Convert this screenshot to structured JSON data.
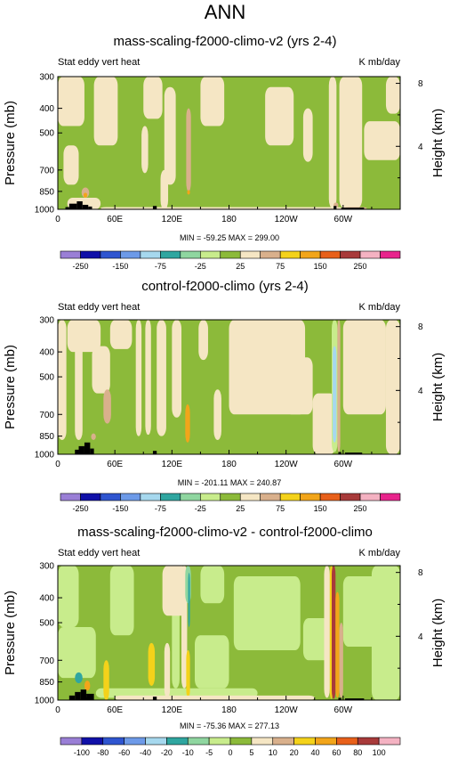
{
  "figure_title": "ANN",
  "colors": {
    "land": "#000000",
    "frame": "#000000",
    "palette": [
      "#9a7fd6",
      "#1010a8",
      "#2f55d0",
      "#6d9ae8",
      "#a6d8ee",
      "#2fa6a0",
      "#8fd6a0",
      "#c8ec8c",
      "#8cba3a",
      "#f5e6c4",
      "#d9b08c",
      "#f4d21a",
      "#f2a51a",
      "#e8601a",
      "#a83a3a",
      "#f4b2c2",
      "#e8248c"
    ]
  },
  "panels": [
    {
      "title": "mass-scaling-f2000-climo-v2 (yrs 2-4)",
      "left_label": "Stat eddy vert heat",
      "right_label": "K mb/day",
      "ylabel": "Pressure (mb)",
      "y2label": "Height (km)",
      "ytick_labels": [
        "300",
        "400",
        "500",
        "700",
        "850",
        "1000"
      ],
      "y2tick_labels": [
        "8",
        "4"
      ],
      "xtick_labels": [
        "0",
        "60E",
        "120E",
        "180",
        "120W",
        "60W"
      ],
      "stats": "MIN = -59.25  MAX = 299.00",
      "colorbar_labels": [
        "-250",
        "-150",
        "-75",
        "-25",
        "25",
        "75",
        "150",
        "250"
      ]
    },
    {
      "title": "control-f2000-climo (yrs 2-4)",
      "left_label": "Stat eddy vert heat",
      "right_label": "K mb/day",
      "ylabel": "Pressure (mb)",
      "y2label": "Height (km)",
      "ytick_labels": [
        "300",
        "400",
        "500",
        "700",
        "850",
        "1000"
      ],
      "y2tick_labels": [
        "8",
        "4"
      ],
      "xtick_labels": [
        "0",
        "60E",
        "120E",
        "180",
        "120W",
        "60W"
      ],
      "stats": "MIN = -201.11  MAX = 240.87",
      "colorbar_labels": [
        "-250",
        "-150",
        "-75",
        "-25",
        "25",
        "75",
        "150",
        "250"
      ]
    },
    {
      "title": "mass-scaling-f2000-climo-v2 - control-f2000-climo",
      "left_label": "Stat eddy vert heat",
      "right_label": "K mb/day",
      "ylabel": "Pressure (mb)",
      "y2label": "Height (km)",
      "ytick_labels": [
        "300",
        "400",
        "500",
        "700",
        "850",
        "1000"
      ],
      "y2tick_labels": [
        "8",
        "4"
      ],
      "xtick_labels": [
        "0",
        "60E",
        "120E",
        "180",
        "120W",
        "60W"
      ],
      "stats": "MIN = -75.36  MAX = 277.13",
      "colorbar_labels": [
        "-100",
        "-80",
        "-60",
        "-40",
        "-20",
        "-10",
        "-5",
        "0",
        "5",
        "10",
        "20",
        "40",
        "60",
        "80",
        "100"
      ]
    }
  ],
  "chart_data": [
    {
      "type": "heatmap",
      "title": "mass-scaling-f2000-climo-v2 (yrs 2-4)",
      "xlabel": "",
      "ylabel": "Pressure (mb)",
      "y2label": "Height (km)",
      "xlim": [
        0,
        360
      ],
      "ylim": [
        1000,
        300
      ],
      "y_scale": "log",
      "units": "K mb/day",
      "levels": [
        -250,
        -200,
        -150,
        -100,
        -75,
        -50,
        -25,
        -10,
        10,
        25,
        50,
        75,
        100,
        150,
        200,
        250
      ],
      "min": -59.25,
      "max": 299.0,
      "background_value": 0,
      "features": [
        {
          "lon": [
            0,
            28
          ],
          "p": [
            300,
            470
          ],
          "v": 12
        },
        {
          "lon": [
            6,
            22
          ],
          "p": [
            560,
            800
          ],
          "v": 12
        },
        {
          "lon": [
            38,
            63
          ],
          "p": [
            300,
            560
          ],
          "v": 12
        },
        {
          "lon": [
            90,
            110
          ],
          "p": [
            300,
            440
          ],
          "v": 12
        },
        {
          "lon": [
            112,
            124
          ],
          "p": [
            330,
            800
          ],
          "v": 12
        },
        {
          "lon": [
            150,
            175
          ],
          "p": [
            300,
            470
          ],
          "v": 12
        },
        {
          "lon": [
            218,
            248
          ],
          "p": [
            330,
            560
          ],
          "v": 12
        },
        {
          "lon": [
            258,
            268
          ],
          "p": [
            400,
            650
          ],
          "v": 12
        },
        {
          "lon": [
            285,
            293
          ],
          "p": [
            300,
            990
          ],
          "v": 12
        },
        {
          "lon": [
            296,
            320
          ],
          "p": [
            300,
            990
          ],
          "v": 12
        },
        {
          "lon": [
            322,
            360
          ],
          "p": [
            450,
            640
          ],
          "v": 12
        },
        {
          "lon": [
            345,
            360
          ],
          "p": [
            300,
            420
          ],
          "v": 12
        },
        {
          "lon": [
            88,
            95
          ],
          "p": [
            470,
            720
          ],
          "v": 12
        },
        {
          "lon": [
            108,
            116
          ],
          "p": [
            700,
            1000
          ],
          "v": 12
        },
        {
          "lon": [
            135,
            140
          ],
          "p": [
            400,
            850
          ],
          "v": 30
        },
        {
          "lon": [
            136,
            139
          ],
          "p": [
            840,
            875
          ],
          "v": 80
        },
        {
          "lon": [
            25,
            33
          ],
          "p": [
            820,
            900
          ],
          "v": 30
        },
        {
          "lon": [
            27,
            31
          ],
          "p": [
            860,
            900
          ],
          "v": 80
        },
        {
          "lon": [
            290,
            295
          ],
          "p": [
            940,
            990
          ],
          "v": 30
        },
        {
          "lon": [
            45,
            300
          ],
          "p": [
            980,
            1000
          ],
          "v": 12
        },
        {
          "lon": [
            10,
            45
          ],
          "p": [
            900,
            1000
          ],
          "v": 12
        },
        {
          "lon": [
            300,
            325
          ],
          "p": [
            980,
            1000
          ],
          "v": 30
        }
      ],
      "land": [
        [
          8,
          12,
          980
        ],
        [
          12,
          20,
          950
        ],
        [
          20,
          26,
          930
        ],
        [
          26,
          32,
          960
        ],
        [
          32,
          36,
          975
        ],
        [
          100,
          104,
          970
        ],
        [
          290,
          293,
          970
        ],
        [
          298,
          322,
          985
        ]
      ]
    },
    {
      "type": "heatmap",
      "title": "control-f2000-climo (yrs 2-4)",
      "xlabel": "",
      "ylabel": "Pressure (mb)",
      "y2label": "Height (km)",
      "xlim": [
        0,
        360
      ],
      "ylim": [
        1000,
        300
      ],
      "y_scale": "log",
      "units": "K mb/day",
      "levels": [
        -250,
        -200,
        -150,
        -100,
        -75,
        -50,
        -25,
        -10,
        10,
        25,
        50,
        75,
        100,
        150,
        200,
        250
      ],
      "min": -201.11,
      "max": 240.87,
      "background_value": 0,
      "features": [
        {
          "lon": [
            0,
            9
          ],
          "p": [
            300,
            880
          ],
          "v": 12
        },
        {
          "lon": [
            18,
            26
          ],
          "p": [
            300,
            880
          ],
          "v": 12
        },
        {
          "lon": [
            10,
            45
          ],
          "p": [
            300,
            400
          ],
          "v": 12
        },
        {
          "lon": [
            36,
            55
          ],
          "p": [
            380,
            580
          ],
          "v": 12
        },
        {
          "lon": [
            55,
            78
          ],
          "p": [
            300,
            390
          ],
          "v": 12
        },
        {
          "lon": [
            82,
            88
          ],
          "p": [
            300,
            850
          ],
          "v": 12
        },
        {
          "lon": [
            92,
            98
          ],
          "p": [
            300,
            840
          ],
          "v": 12
        },
        {
          "lon": [
            104,
            114
          ],
          "p": [
            300,
            850
          ],
          "v": 12
        },
        {
          "lon": [
            120,
            130
          ],
          "p": [
            300,
            720
          ],
          "v": 12
        },
        {
          "lon": [
            148,
            158
          ],
          "p": [
            300,
            430
          ],
          "v": 12
        },
        {
          "lon": [
            164,
            172
          ],
          "p": [
            560,
            880
          ],
          "v": 12
        },
        {
          "lon": [
            180,
            260
          ],
          "p": [
            300,
            700
          ],
          "v": 12
        },
        {
          "lon": [
            240,
            268
          ],
          "p": [
            420,
            700
          ],
          "v": 12
        },
        {
          "lon": [
            268,
            292
          ],
          "p": [
            580,
            1000
          ],
          "v": 12
        },
        {
          "lon": [
            300,
            345
          ],
          "p": [
            300,
            700
          ],
          "v": 12
        },
        {
          "lon": [
            345,
            360
          ],
          "p": [
            300,
            1000
          ],
          "v": 12
        },
        {
          "lon": [
            48,
            56
          ],
          "p": [
            560,
            760
          ],
          "v": 30
        },
        {
          "lon": [
            134,
            139
          ],
          "p": [
            640,
            900
          ],
          "v": 80
        },
        {
          "lon": [
            288,
            294
          ],
          "p": [
            300,
            980
          ],
          "v": -15
        },
        {
          "lon": [
            289,
            293
          ],
          "p": [
            380,
            900
          ],
          "v": -85
        },
        {
          "lon": [
            294,
            297
          ],
          "p": [
            300,
            980
          ],
          "v": 30
        },
        {
          "lon": [
            35,
            40
          ],
          "p": [
            830,
            880
          ],
          "v": 30
        }
      ],
      "land": [
        [
          18,
          22,
          960
        ],
        [
          22,
          28,
          930
        ],
        [
          28,
          34,
          900
        ],
        [
          34,
          38,
          950
        ],
        [
          100,
          104,
          970
        ],
        [
          295,
          298,
          980
        ],
        [
          302,
          320,
          985
        ]
      ]
    },
    {
      "type": "heatmap",
      "title": "mass-scaling-f2000-climo-v2 - control-f2000-climo",
      "xlabel": "",
      "ylabel": "Pressure (mb)",
      "y2label": "Height (km)",
      "xlim": [
        0,
        360
      ],
      "ylim": [
        1000,
        300
      ],
      "y_scale": "log",
      "units": "K mb/day",
      "levels": [
        -100,
        -80,
        -60,
        -40,
        -20,
        -10,
        -5,
        0,
        5,
        10,
        20,
        40,
        60,
        80,
        100
      ],
      "min": -75.36,
      "max": 277.13,
      "background_value": 2,
      "features": [
        {
          "lon": [
            0,
            22
          ],
          "p": [
            300,
            520
          ],
          "v": -2
        },
        {
          "lon": [
            0,
            40
          ],
          "p": [
            520,
            820
          ],
          "v": -2
        },
        {
          "lon": [
            55,
            80
          ],
          "p": [
            300,
            560
          ],
          "v": -2
        },
        {
          "lon": [
            120,
            128
          ],
          "p": [
            300,
            900
          ],
          "v": -2
        },
        {
          "lon": [
            144,
            180
          ],
          "p": [
            560,
            900
          ],
          "v": -2
        },
        {
          "lon": [
            150,
            175
          ],
          "p": [
            300,
            420
          ],
          "v": -2
        },
        {
          "lon": [
            185,
            255
          ],
          "p": [
            330,
            640
          ],
          "v": -2
        },
        {
          "lon": [
            258,
            285
          ],
          "p": [
            480,
            700
          ],
          "v": -2
        },
        {
          "lon": [
            300,
            360
          ],
          "p": [
            330,
            620
          ],
          "v": -2
        },
        {
          "lon": [
            330,
            360
          ],
          "p": [
            300,
            1000
          ],
          "v": -2
        },
        {
          "lon": [
            40,
            210
          ],
          "p": [
            900,
            980
          ],
          "v": -2
        },
        {
          "lon": [
            110,
            135
          ],
          "p": [
            300,
            470
          ],
          "v": 7
        },
        {
          "lon": [
            112,
            118
          ],
          "p": [
            600,
            980
          ],
          "v": 7
        },
        {
          "lon": [
            130,
            136
          ],
          "p": [
            300,
            900
          ],
          "v": 7
        },
        {
          "lon": [
            134,
            140
          ],
          "p": [
            300,
            420
          ],
          "v": -7
        },
        {
          "lon": [
            137,
            139
          ],
          "p": [
            320,
            520
          ],
          "v": -15
        },
        {
          "lon": [
            135,
            139
          ],
          "p": [
            640,
            980
          ],
          "v": 25
        },
        {
          "lon": [
            95,
            102
          ],
          "p": [
            600,
            880
          ],
          "v": 25
        },
        {
          "lon": [
            48,
            54
          ],
          "p": [
            700,
            1000
          ],
          "v": 25
        },
        {
          "lon": [
            18,
            26
          ],
          "p": [
            780,
            860
          ],
          "v": -15
        },
        {
          "lon": [
            28,
            34
          ],
          "p": [
            840,
            920
          ],
          "v": 50
        },
        {
          "lon": [
            280,
            286
          ],
          "p": [
            300,
            980
          ],
          "v": 7
        },
        {
          "lon": [
            286,
            289
          ],
          "p": [
            300,
            990
          ],
          "v": 25
        },
        {
          "lon": [
            288,
            292
          ],
          "p": [
            300,
            990
          ],
          "v": 90
        },
        {
          "lon": [
            292,
            296
          ],
          "p": [
            380,
            980
          ],
          "v": 50
        },
        {
          "lon": [
            296,
            300
          ],
          "p": [
            500,
            980
          ],
          "v": 15
        },
        {
          "lon": [
            60,
            270
          ],
          "p": [
            960,
            1000
          ],
          "v": 7
        }
      ],
      "land": [
        [
          12,
          18,
          960
        ],
        [
          18,
          24,
          930
        ],
        [
          24,
          30,
          910
        ],
        [
          30,
          38,
          945
        ],
        [
          100,
          104,
          970
        ],
        [
          295,
          298,
          980
        ],
        [
          302,
          322,
          985
        ]
      ]
    }
  ]
}
